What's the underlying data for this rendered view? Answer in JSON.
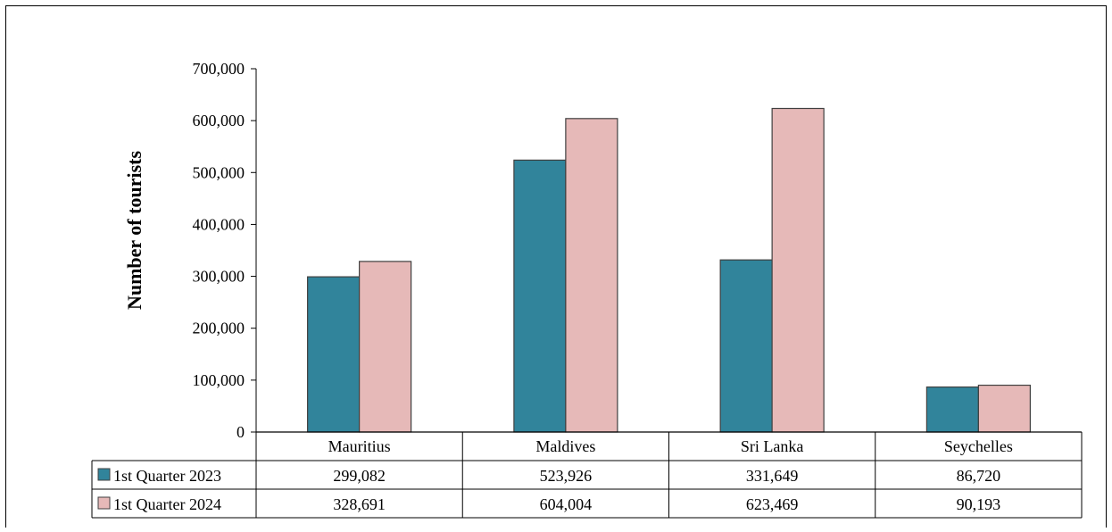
{
  "chart_data": {
    "type": "bar",
    "ylabel": "Number of tourists",
    "ylim": [
      0,
      700000
    ],
    "yticks": [
      "0",
      "100,000",
      "200,000",
      "300,000",
      "400,000",
      "500,000",
      "600,000",
      "700,000"
    ],
    "categories": [
      "Mauritius",
      "Maldives",
      "Sri Lanka",
      "Seychelles"
    ],
    "series": [
      {
        "name": "1st Quarter 2023",
        "color": "#31849b",
        "values": [
          299082,
          523926,
          331649,
          86720
        ],
        "labels": [
          "299,082",
          "523,926",
          "331,649",
          "86,720"
        ]
      },
      {
        "name": "1st Quarter 2024",
        "color": "#e6b9b8",
        "values": [
          328691,
          604004,
          623469,
          90193
        ],
        "labels": [
          "328,691",
          "604,004",
          "623,469",
          "90,193"
        ]
      }
    ],
    "grid": false,
    "legend": "data-table"
  }
}
